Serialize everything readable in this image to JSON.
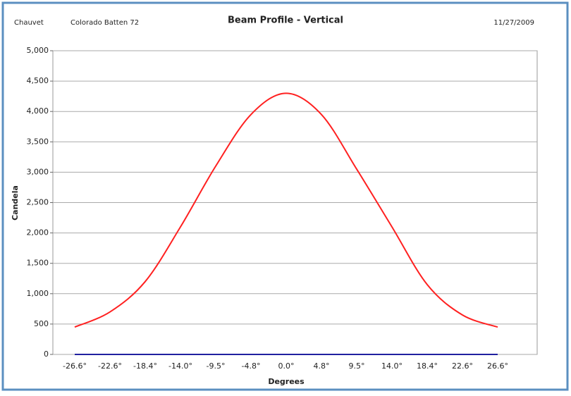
{
  "chart_data": {
    "type": "line",
    "header": {
      "maker": "Chauvet",
      "model": "Colorado Batten 72",
      "date": "11/27/2009"
    },
    "title": "Beam Profile - Vertical",
    "xlabel": "Degrees",
    "ylabel": "Candela",
    "categories": [
      "-26.6°",
      "-22.6°",
      "-18.4°",
      "-14.0°",
      "-9.5°",
      "-4.8°",
      "0.0°",
      "4.8°",
      "9.5°",
      "14.0°",
      "18.4°",
      "22.6°",
      "26.6°"
    ],
    "series": [
      {
        "color": "#ff2020",
        "values": [
          450,
          700,
          1200,
          2100,
          3100,
          3950,
          4300,
          3950,
          3050,
          2100,
          1150,
          650,
          450
        ]
      },
      {
        "color": "#2020a0",
        "values": [
          0,
          0,
          0,
          0,
          0,
          0,
          0,
          0,
          0,
          0,
          0,
          0,
          0
        ]
      }
    ],
    "ylim": [
      0,
      5000
    ],
    "yticks": [
      0,
      500,
      {
        "value": 1000,
        "label": "1,000"
      },
      {
        "value": 1500,
        "label": "1,500"
      },
      {
        "value": 2000,
        "label": "2,000"
      },
      {
        "value": 2500,
        "label": "2,500"
      },
      {
        "value": 3000,
        "label": "3,000"
      },
      {
        "value": 3500,
        "label": "3,500"
      },
      {
        "value": 4000,
        "label": "4,000"
      },
      {
        "value": 4500,
        "label": "4,500"
      },
      {
        "value": 5000,
        "label": "5,000"
      }
    ],
    "grid": true
  }
}
